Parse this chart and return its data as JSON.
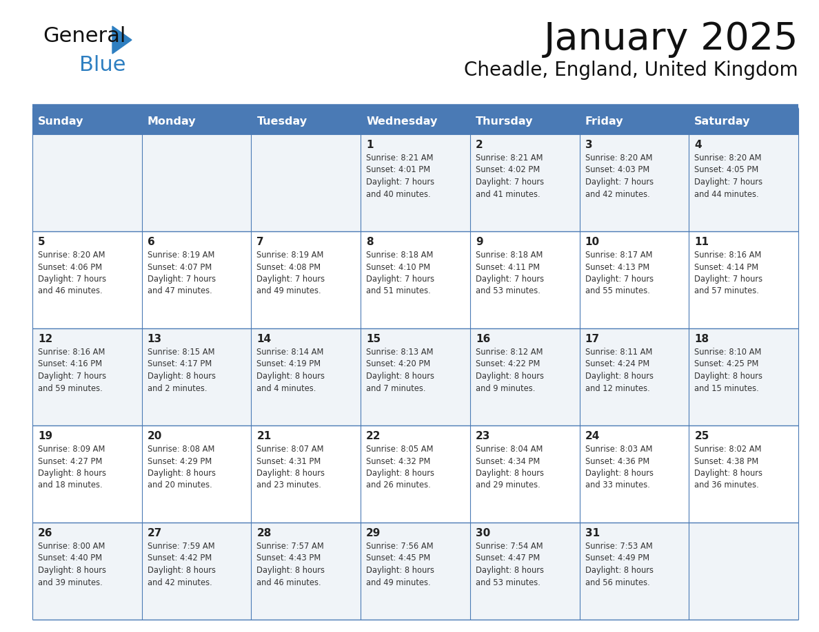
{
  "title": "January 2025",
  "subtitle": "Cheadle, England, United Kingdom",
  "days_of_week": [
    "Sunday",
    "Monday",
    "Tuesday",
    "Wednesday",
    "Thursday",
    "Friday",
    "Saturday"
  ],
  "header_bg": "#4a7ab5",
  "header_text": "#ffffff",
  "row_alt_bg": "#f0f4f8",
  "row_bg": "#ffffff",
  "line_color": "#4a7ab5",
  "day_number_color": "#222222",
  "cell_text_color": "#333333",
  "calendar": [
    [
      null,
      null,
      null,
      {
        "day": 1,
        "sunrise": "8:21 AM",
        "sunset": "4:01 PM",
        "daylight": "7 hours",
        "daylight2": "and 40 minutes."
      },
      {
        "day": 2,
        "sunrise": "8:21 AM",
        "sunset": "4:02 PM",
        "daylight": "7 hours",
        "daylight2": "and 41 minutes."
      },
      {
        "day": 3,
        "sunrise": "8:20 AM",
        "sunset": "4:03 PM",
        "daylight": "7 hours",
        "daylight2": "and 42 minutes."
      },
      {
        "day": 4,
        "sunrise": "8:20 AM",
        "sunset": "4:05 PM",
        "daylight": "7 hours",
        "daylight2": "and 44 minutes."
      }
    ],
    [
      {
        "day": 5,
        "sunrise": "8:20 AM",
        "sunset": "4:06 PM",
        "daylight": "7 hours",
        "daylight2": "and 46 minutes."
      },
      {
        "day": 6,
        "sunrise": "8:19 AM",
        "sunset": "4:07 PM",
        "daylight": "7 hours",
        "daylight2": "and 47 minutes."
      },
      {
        "day": 7,
        "sunrise": "8:19 AM",
        "sunset": "4:08 PM",
        "daylight": "7 hours",
        "daylight2": "and 49 minutes."
      },
      {
        "day": 8,
        "sunrise": "8:18 AM",
        "sunset": "4:10 PM",
        "daylight": "7 hours",
        "daylight2": "and 51 minutes."
      },
      {
        "day": 9,
        "sunrise": "8:18 AM",
        "sunset": "4:11 PM",
        "daylight": "7 hours",
        "daylight2": "and 53 minutes."
      },
      {
        "day": 10,
        "sunrise": "8:17 AM",
        "sunset": "4:13 PM",
        "daylight": "7 hours",
        "daylight2": "and 55 minutes."
      },
      {
        "day": 11,
        "sunrise": "8:16 AM",
        "sunset": "4:14 PM",
        "daylight": "7 hours",
        "daylight2": "and 57 minutes."
      }
    ],
    [
      {
        "day": 12,
        "sunrise": "8:16 AM",
        "sunset": "4:16 PM",
        "daylight": "7 hours",
        "daylight2": "and 59 minutes."
      },
      {
        "day": 13,
        "sunrise": "8:15 AM",
        "sunset": "4:17 PM",
        "daylight": "8 hours",
        "daylight2": "and 2 minutes."
      },
      {
        "day": 14,
        "sunrise": "8:14 AM",
        "sunset": "4:19 PM",
        "daylight": "8 hours",
        "daylight2": "and 4 minutes."
      },
      {
        "day": 15,
        "sunrise": "8:13 AM",
        "sunset": "4:20 PM",
        "daylight": "8 hours",
        "daylight2": "and 7 minutes."
      },
      {
        "day": 16,
        "sunrise": "8:12 AM",
        "sunset": "4:22 PM",
        "daylight": "8 hours",
        "daylight2": "and 9 minutes."
      },
      {
        "day": 17,
        "sunrise": "8:11 AM",
        "sunset": "4:24 PM",
        "daylight": "8 hours",
        "daylight2": "and 12 minutes."
      },
      {
        "day": 18,
        "sunrise": "8:10 AM",
        "sunset": "4:25 PM",
        "daylight": "8 hours",
        "daylight2": "and 15 minutes."
      }
    ],
    [
      {
        "day": 19,
        "sunrise": "8:09 AM",
        "sunset": "4:27 PM",
        "daylight": "8 hours",
        "daylight2": "and 18 minutes."
      },
      {
        "day": 20,
        "sunrise": "8:08 AM",
        "sunset": "4:29 PM",
        "daylight": "8 hours",
        "daylight2": "and 20 minutes."
      },
      {
        "day": 21,
        "sunrise": "8:07 AM",
        "sunset": "4:31 PM",
        "daylight": "8 hours",
        "daylight2": "and 23 minutes."
      },
      {
        "day": 22,
        "sunrise": "8:05 AM",
        "sunset": "4:32 PM",
        "daylight": "8 hours",
        "daylight2": "and 26 minutes."
      },
      {
        "day": 23,
        "sunrise": "8:04 AM",
        "sunset": "4:34 PM",
        "daylight": "8 hours",
        "daylight2": "and 29 minutes."
      },
      {
        "day": 24,
        "sunrise": "8:03 AM",
        "sunset": "4:36 PM",
        "daylight": "8 hours",
        "daylight2": "and 33 minutes."
      },
      {
        "day": 25,
        "sunrise": "8:02 AM",
        "sunset": "4:38 PM",
        "daylight": "8 hours",
        "daylight2": "and 36 minutes."
      }
    ],
    [
      {
        "day": 26,
        "sunrise": "8:00 AM",
        "sunset": "4:40 PM",
        "daylight": "8 hours",
        "daylight2": "and 39 minutes."
      },
      {
        "day": 27,
        "sunrise": "7:59 AM",
        "sunset": "4:42 PM",
        "daylight": "8 hours",
        "daylight2": "and 42 minutes."
      },
      {
        "day": 28,
        "sunrise": "7:57 AM",
        "sunset": "4:43 PM",
        "daylight": "8 hours",
        "daylight2": "and 46 minutes."
      },
      {
        "day": 29,
        "sunrise": "7:56 AM",
        "sunset": "4:45 PM",
        "daylight": "8 hours",
        "daylight2": "and 49 minutes."
      },
      {
        "day": 30,
        "sunrise": "7:54 AM",
        "sunset": "4:47 PM",
        "daylight": "8 hours",
        "daylight2": "and 53 minutes."
      },
      {
        "day": 31,
        "sunrise": "7:53 AM",
        "sunset": "4:49 PM",
        "daylight": "8 hours",
        "daylight2": "and 56 minutes."
      },
      null
    ]
  ]
}
